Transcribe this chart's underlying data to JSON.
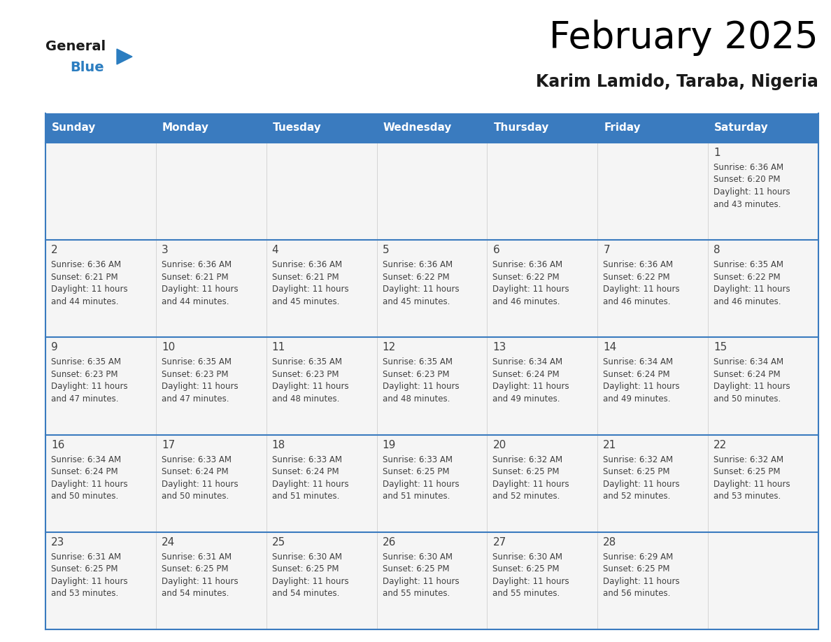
{
  "title": "February 2025",
  "subtitle": "Karim Lamido, Taraba, Nigeria",
  "header_color": "#3a7bbf",
  "header_text_color": "#ffffff",
  "days_of_week": [
    "Sunday",
    "Monday",
    "Tuesday",
    "Wednesday",
    "Thursday",
    "Friday",
    "Saturday"
  ],
  "cell_bg": "#f5f5f5",
  "separator_color": "#3a7bbf",
  "text_color": "#404040",
  "calendar": [
    [
      null,
      null,
      null,
      null,
      null,
      null,
      {
        "day": "1",
        "sunrise": "6:36 AM",
        "sunset": "6:20 PM",
        "daylight_hrs": 11,
        "daylight_min": 43
      }
    ],
    [
      {
        "day": "2",
        "sunrise": "6:36 AM",
        "sunset": "6:21 PM",
        "daylight_hrs": 11,
        "daylight_min": 44
      },
      {
        "day": "3",
        "sunrise": "6:36 AM",
        "sunset": "6:21 PM",
        "daylight_hrs": 11,
        "daylight_min": 44
      },
      {
        "day": "4",
        "sunrise": "6:36 AM",
        "sunset": "6:21 PM",
        "daylight_hrs": 11,
        "daylight_min": 45
      },
      {
        "day": "5",
        "sunrise": "6:36 AM",
        "sunset": "6:22 PM",
        "daylight_hrs": 11,
        "daylight_min": 45
      },
      {
        "day": "6",
        "sunrise": "6:36 AM",
        "sunset": "6:22 PM",
        "daylight_hrs": 11,
        "daylight_min": 46
      },
      {
        "day": "7",
        "sunrise": "6:36 AM",
        "sunset": "6:22 PM",
        "daylight_hrs": 11,
        "daylight_min": 46
      },
      {
        "day": "8",
        "sunrise": "6:35 AM",
        "sunset": "6:22 PM",
        "daylight_hrs": 11,
        "daylight_min": 46
      }
    ],
    [
      {
        "day": "9",
        "sunrise": "6:35 AM",
        "sunset": "6:23 PM",
        "daylight_hrs": 11,
        "daylight_min": 47
      },
      {
        "day": "10",
        "sunrise": "6:35 AM",
        "sunset": "6:23 PM",
        "daylight_hrs": 11,
        "daylight_min": 47
      },
      {
        "day": "11",
        "sunrise": "6:35 AM",
        "sunset": "6:23 PM",
        "daylight_hrs": 11,
        "daylight_min": 48
      },
      {
        "day": "12",
        "sunrise": "6:35 AM",
        "sunset": "6:23 PM",
        "daylight_hrs": 11,
        "daylight_min": 48
      },
      {
        "day": "13",
        "sunrise": "6:34 AM",
        "sunset": "6:24 PM",
        "daylight_hrs": 11,
        "daylight_min": 49
      },
      {
        "day": "14",
        "sunrise": "6:34 AM",
        "sunset": "6:24 PM",
        "daylight_hrs": 11,
        "daylight_min": 49
      },
      {
        "day": "15",
        "sunrise": "6:34 AM",
        "sunset": "6:24 PM",
        "daylight_hrs": 11,
        "daylight_min": 50
      }
    ],
    [
      {
        "day": "16",
        "sunrise": "6:34 AM",
        "sunset": "6:24 PM",
        "daylight_hrs": 11,
        "daylight_min": 50
      },
      {
        "day": "17",
        "sunrise": "6:33 AM",
        "sunset": "6:24 PM",
        "daylight_hrs": 11,
        "daylight_min": 50
      },
      {
        "day": "18",
        "sunrise": "6:33 AM",
        "sunset": "6:24 PM",
        "daylight_hrs": 11,
        "daylight_min": 51
      },
      {
        "day": "19",
        "sunrise": "6:33 AM",
        "sunset": "6:25 PM",
        "daylight_hrs": 11,
        "daylight_min": 51
      },
      {
        "day": "20",
        "sunrise": "6:32 AM",
        "sunset": "6:25 PM",
        "daylight_hrs": 11,
        "daylight_min": 52
      },
      {
        "day": "21",
        "sunrise": "6:32 AM",
        "sunset": "6:25 PM",
        "daylight_hrs": 11,
        "daylight_min": 52
      },
      {
        "day": "22",
        "sunrise": "6:32 AM",
        "sunset": "6:25 PM",
        "daylight_hrs": 11,
        "daylight_min": 53
      }
    ],
    [
      {
        "day": "23",
        "sunrise": "6:31 AM",
        "sunset": "6:25 PM",
        "daylight_hrs": 11,
        "daylight_min": 53
      },
      {
        "day": "24",
        "sunrise": "6:31 AM",
        "sunset": "6:25 PM",
        "daylight_hrs": 11,
        "daylight_min": 54
      },
      {
        "day": "25",
        "sunrise": "6:30 AM",
        "sunset": "6:25 PM",
        "daylight_hrs": 11,
        "daylight_min": 54
      },
      {
        "day": "26",
        "sunrise": "6:30 AM",
        "sunset": "6:25 PM",
        "daylight_hrs": 11,
        "daylight_min": 55
      },
      {
        "day": "27",
        "sunrise": "6:30 AM",
        "sunset": "6:25 PM",
        "daylight_hrs": 11,
        "daylight_min": 55
      },
      {
        "day": "28",
        "sunrise": "6:29 AM",
        "sunset": "6:25 PM",
        "daylight_hrs": 11,
        "daylight_min": 56
      },
      null
    ]
  ],
  "logo_general_color": "#1a1a1a",
  "logo_blue_color": "#2b7dc0",
  "logo_triangle_color": "#2b7dc0",
  "title_fontsize": 38,
  "subtitle_fontsize": 17,
  "header_fontsize": 11,
  "day_num_fontsize": 11,
  "cell_text_fontsize": 8.5
}
